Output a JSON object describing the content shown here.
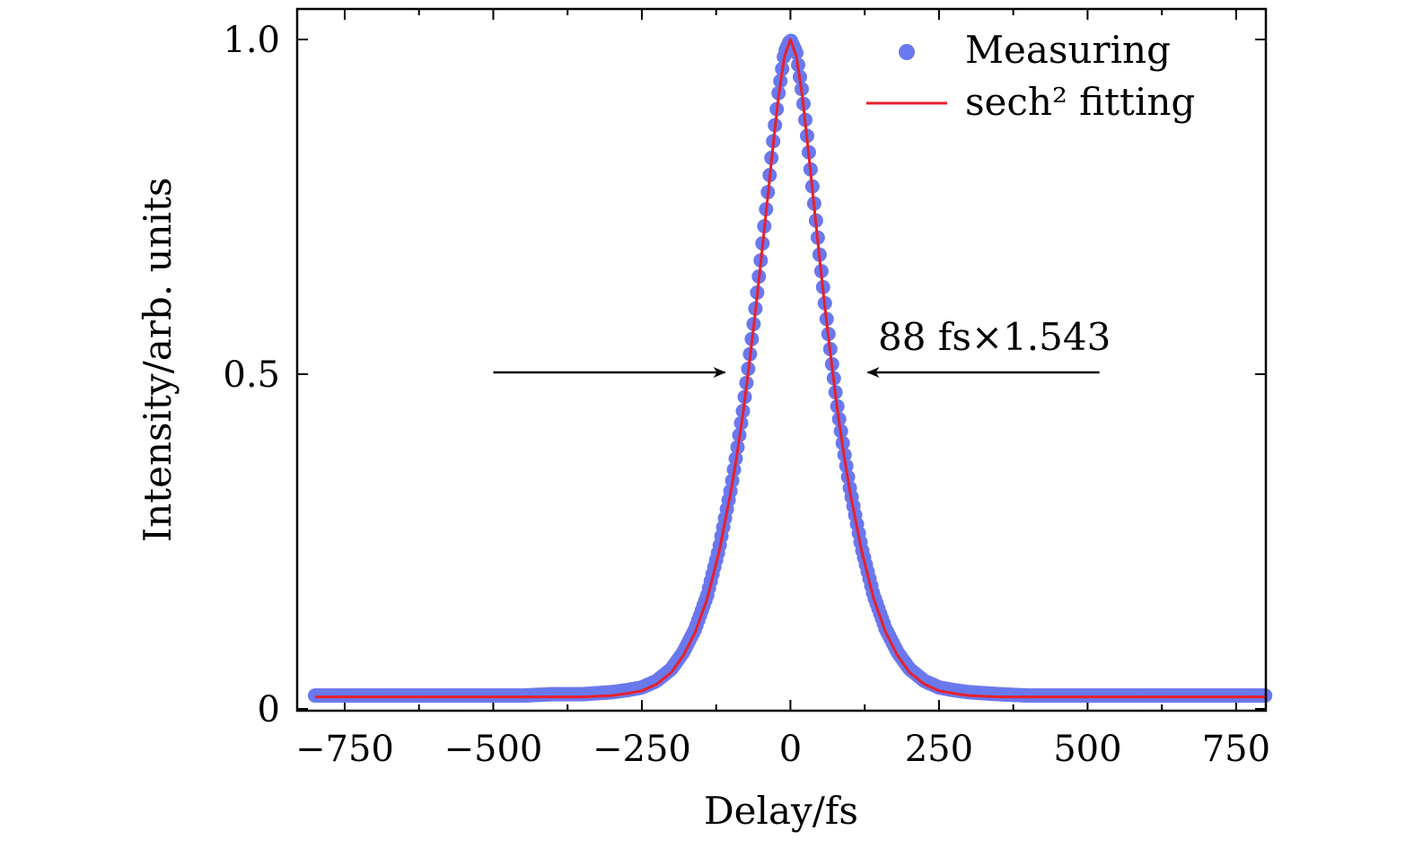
{
  "chart_data": {
    "type": "scatter",
    "xlabel": "Delay/fs",
    "ylabel": "Intensity/arb. units",
    "xlim": [
      -830,
      800
    ],
    "ylim": [
      0,
      1.0
    ],
    "x_ticks": [
      -750,
      -500,
      -250,
      0,
      250,
      500,
      750
    ],
    "x_tick_labels": [
      "−750",
      "−500",
      "−250",
      "0",
      "250",
      "500",
      "750"
    ],
    "y_ticks": [
      0,
      0.5,
      1.0
    ],
    "y_tick_labels": [
      "0",
      "0.5",
      "1.0"
    ],
    "grid": false,
    "legend_position": "top-right",
    "series": [
      {
        "name": "Measuring",
        "style": "markers",
        "color": "#6a78ee",
        "x": [
          -800,
          -750,
          -700,
          -650,
          -600,
          -550,
          -500,
          -450,
          -400,
          -350,
          -300,
          -275,
          -250,
          -225,
          -200,
          -180,
          -160,
          -140,
          -120,
          -100,
          -90,
          -80,
          -70,
          -60,
          -50,
          -40,
          -30,
          -20,
          -10,
          0,
          10,
          20,
          30,
          40,
          50,
          60,
          70,
          80,
          90,
          100,
          120,
          140,
          160,
          180,
          200,
          225,
          250,
          275,
          300,
          350,
          400,
          450,
          500,
          550,
          600,
          650,
          700,
          750,
          800
        ],
        "y": [
          0.02,
          0.02,
          0.02,
          0.02,
          0.02,
          0.02,
          0.02,
          0.02,
          0.022,
          0.022,
          0.025,
          0.028,
          0.032,
          0.042,
          0.06,
          0.085,
          0.12,
          0.17,
          0.24,
          0.33,
          0.385,
          0.445,
          0.515,
          0.59,
          0.67,
          0.755,
          0.84,
          0.92,
          0.98,
          1.0,
          0.98,
          0.92,
          0.84,
          0.755,
          0.67,
          0.59,
          0.515,
          0.445,
          0.385,
          0.33,
          0.24,
          0.17,
          0.12,
          0.085,
          0.06,
          0.042,
          0.032,
          0.028,
          0.025,
          0.022,
          0.02,
          0.02,
          0.02,
          0.02,
          0.02,
          0.02,
          0.02,
          0.02,
          0.02
        ]
      },
      {
        "name": "sech² fitting",
        "style": "line",
        "color": "#e8202a",
        "x": [
          -800,
          -700,
          -600,
          -500,
          -400,
          -350,
          -300,
          -275,
          -250,
          -225,
          -200,
          -180,
          -160,
          -140,
          -120,
          -100,
          -90,
          -80,
          -70,
          -60,
          -50,
          -40,
          -30,
          -20,
          -10,
          0,
          10,
          20,
          30,
          40,
          50,
          60,
          70,
          80,
          90,
          100,
          120,
          140,
          160,
          180,
          200,
          225,
          250,
          275,
          300,
          350,
          400,
          500,
          600,
          700,
          800
        ],
        "y": [
          0.018,
          0.018,
          0.018,
          0.018,
          0.018,
          0.018,
          0.02,
          0.023,
          0.027,
          0.037,
          0.055,
          0.08,
          0.115,
          0.165,
          0.235,
          0.325,
          0.38,
          0.44,
          0.51,
          0.585,
          0.665,
          0.75,
          0.835,
          0.915,
          0.975,
          1.0,
          0.975,
          0.915,
          0.835,
          0.75,
          0.665,
          0.585,
          0.51,
          0.44,
          0.38,
          0.325,
          0.235,
          0.165,
          0.115,
          0.08,
          0.055,
          0.037,
          0.027,
          0.023,
          0.02,
          0.018,
          0.018,
          0.018,
          0.018,
          0.018,
          0.018
        ]
      }
    ],
    "annotations": [
      {
        "text": "88 fs×1.543"
      }
    ],
    "fwhm_arrows": {
      "y": 0.5,
      "left": {
        "from_x": -500,
        "to_x": -110
      },
      "right": {
        "from_x": 520,
        "to_x": 130
      }
    }
  }
}
